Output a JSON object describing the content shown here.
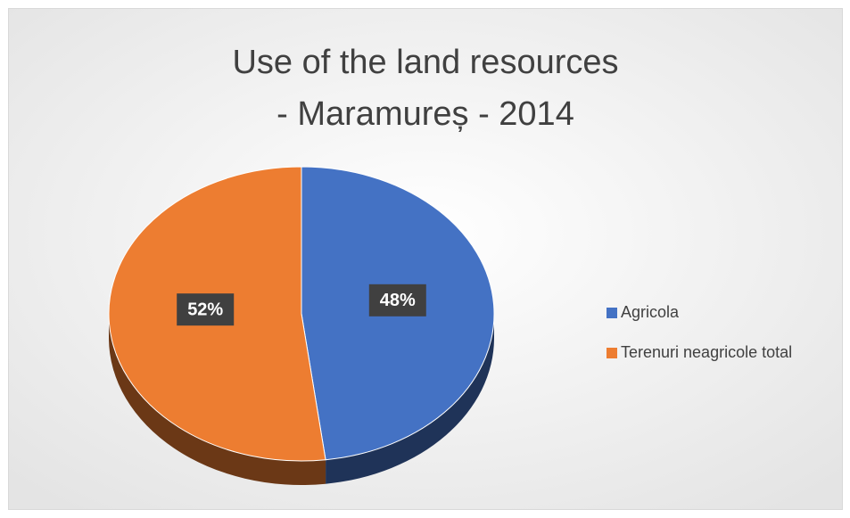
{
  "chart_data": {
    "type": "pie",
    "title": [
      "Use of the land resources",
      "- Maramureș - 2014"
    ],
    "categories": [
      "Agricola",
      "Terenuri neagricole total"
    ],
    "values": [
      48,
      52
    ],
    "value_labels": [
      "48%",
      "52%"
    ],
    "colors": [
      "#4472c4",
      "#ed7d31"
    ],
    "legend": "right"
  }
}
